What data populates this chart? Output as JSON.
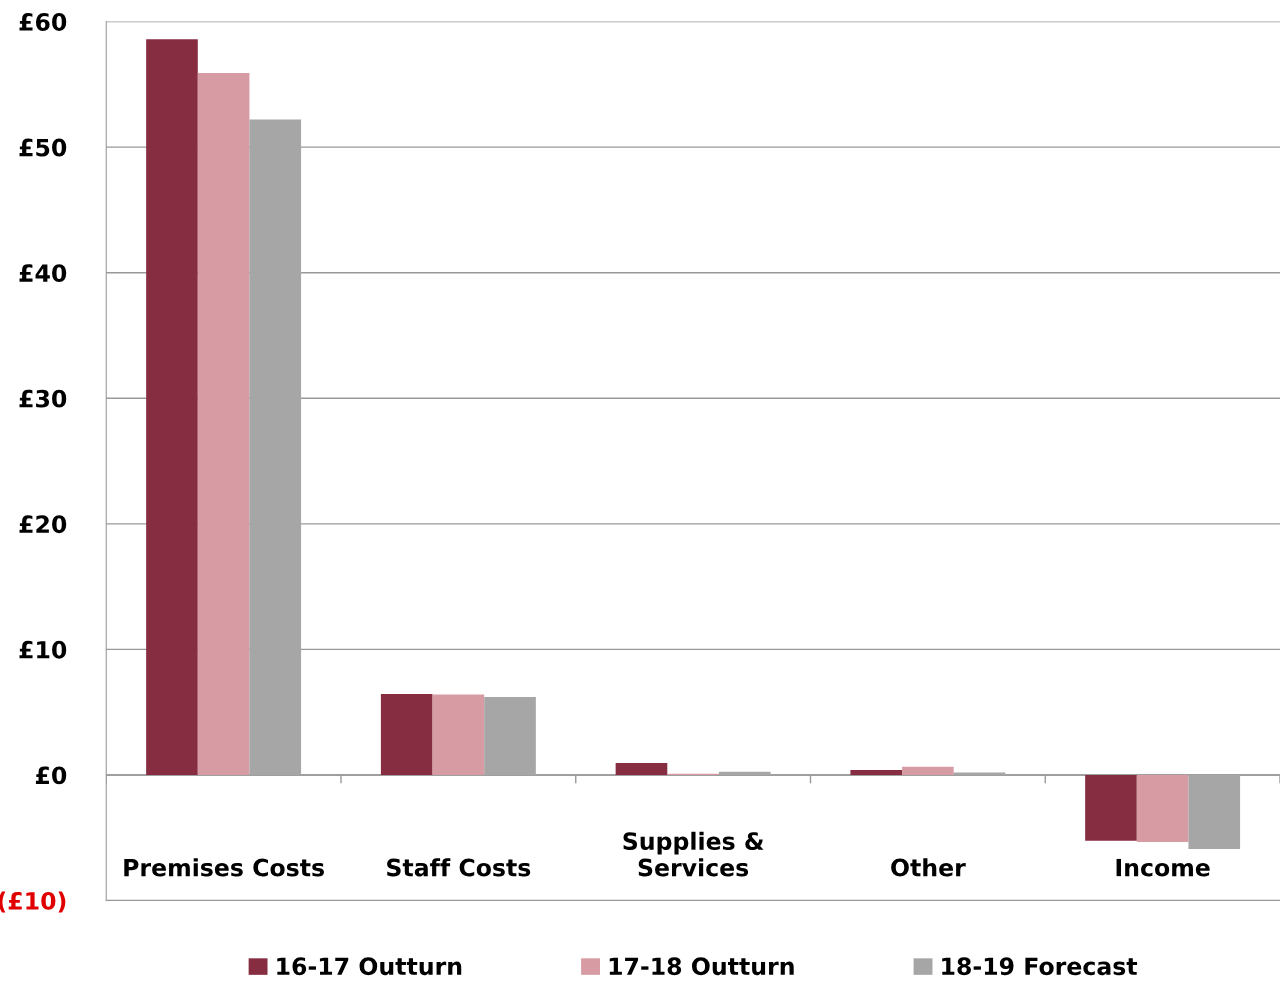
{
  "chart_data": {
    "type": "bar",
    "categories": [
      "Premises Costs",
      "Staff Costs",
      "Supplies &\nServices",
      "Other",
      "Income"
    ],
    "series": [
      {
        "name": "16-17 Outturn",
        "color": "#862d42",
        "values": [
          58.6,
          6.45,
          0.95,
          0.4,
          -5.25
        ]
      },
      {
        "name": "17-18 Outturn",
        "color": "#d79ca3",
        "values": [
          55.9,
          6.4,
          0.1,
          0.65,
          -5.35
        ]
      },
      {
        "name": "18-19 Forecast",
        "color": "#a6a6a6",
        "values": [
          52.2,
          6.2,
          0.25,
          0.2,
          -5.9
        ]
      }
    ],
    "ylim": [
      -10,
      60
    ],
    "yticks": [
      {
        "value": -10,
        "label": "(£10)"
      },
      {
        "value": 0,
        "label": "£0"
      },
      {
        "value": 10,
        "label": "£10"
      },
      {
        "value": 20,
        "label": "£20"
      },
      {
        "value": 30,
        "label": "£30"
      },
      {
        "value": 40,
        "label": "£40"
      },
      {
        "value": 50,
        "label": "£50"
      },
      {
        "value": 60,
        "label": "£60"
      }
    ],
    "grid": "y",
    "legend": "bottom"
  }
}
